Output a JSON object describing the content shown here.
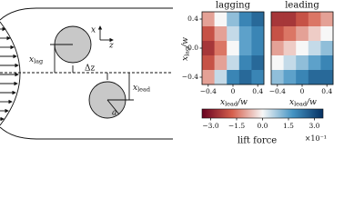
{
  "diagram": {
    "x_lag": {
      "var": "x",
      "sub": "lag"
    },
    "dz": "Δz",
    "x_lead": {
      "var": "x",
      "sub": "lead"
    },
    "radius": "a",
    "axis_x": "x",
    "axis_z": "z"
  },
  "chart_data": [
    {
      "type": "heatmap",
      "title": "lagging",
      "xlabel": {
        "var": "x",
        "sub": "lead",
        "rest": "/w"
      },
      "ylabel": {
        "var": "x",
        "sub": "lag",
        "rest": "/w"
      },
      "xlim": [
        -0.5,
        0.5
      ],
      "ylim": [
        -0.5,
        0.5
      ],
      "xticks": [
        {
          "value": -0.4,
          "label": "−0.4"
        },
        0,
        0.4
      ],
      "yticks": [
        0.4,
        {
          "value": 0,
          "label": "0.0"
        },
        {
          "value": -0.4,
          "label": "−0.4"
        }
      ],
      "z": [
        [
          -1,
          0,
          1,
          2,
          2.5
        ],
        [
          -2,
          -1,
          0.5,
          1.5,
          2
        ],
        [
          -2.5,
          -1.5,
          0,
          1.5,
          2
        ],
        [
          -2,
          -1,
          0.5,
          2,
          2.5
        ],
        [
          -1,
          0.5,
          2,
          2.5,
          2
        ]
      ]
    },
    {
      "type": "heatmap",
      "title": "leading",
      "xlabel": {
        "var": "x",
        "sub": "lead",
        "rest": "/w"
      },
      "xlim": [
        -0.5,
        0.5
      ],
      "ylim": [
        -0.5,
        0.5
      ],
      "xticks": [
        {
          "value": -0.4,
          "label": "−0.4"
        },
        0,
        0.4
      ],
      "z": [
        [
          -2.5,
          -2.5,
          -2,
          -1.5,
          -1
        ],
        [
          -2,
          -1.5,
          -1,
          -0.5,
          0
        ],
        [
          -1,
          -0.5,
          0,
          0.5,
          1
        ],
        [
          0,
          0.5,
          1,
          1.5,
          2
        ],
        [
          1,
          1.5,
          2,
          2.5,
          2.5
        ]
      ]
    },
    {
      "type": "colorbar",
      "label": "lift force",
      "multiplier": "×10⁻¹",
      "clim": [
        -3.5,
        3.5
      ],
      "colormap": [
        "#67001f",
        "#d6604d",
        "#f7f7f7",
        "#4393c3",
        "#053061"
      ],
      "ticks": [
        {
          "value": -3,
          "label": "−3.0"
        },
        {
          "value": -1.5,
          "label": "−1.5"
        },
        {
          "value": 0,
          "label": "0.0"
        },
        1.5,
        {
          "value": 3,
          "label": "3.0"
        }
      ]
    }
  ]
}
